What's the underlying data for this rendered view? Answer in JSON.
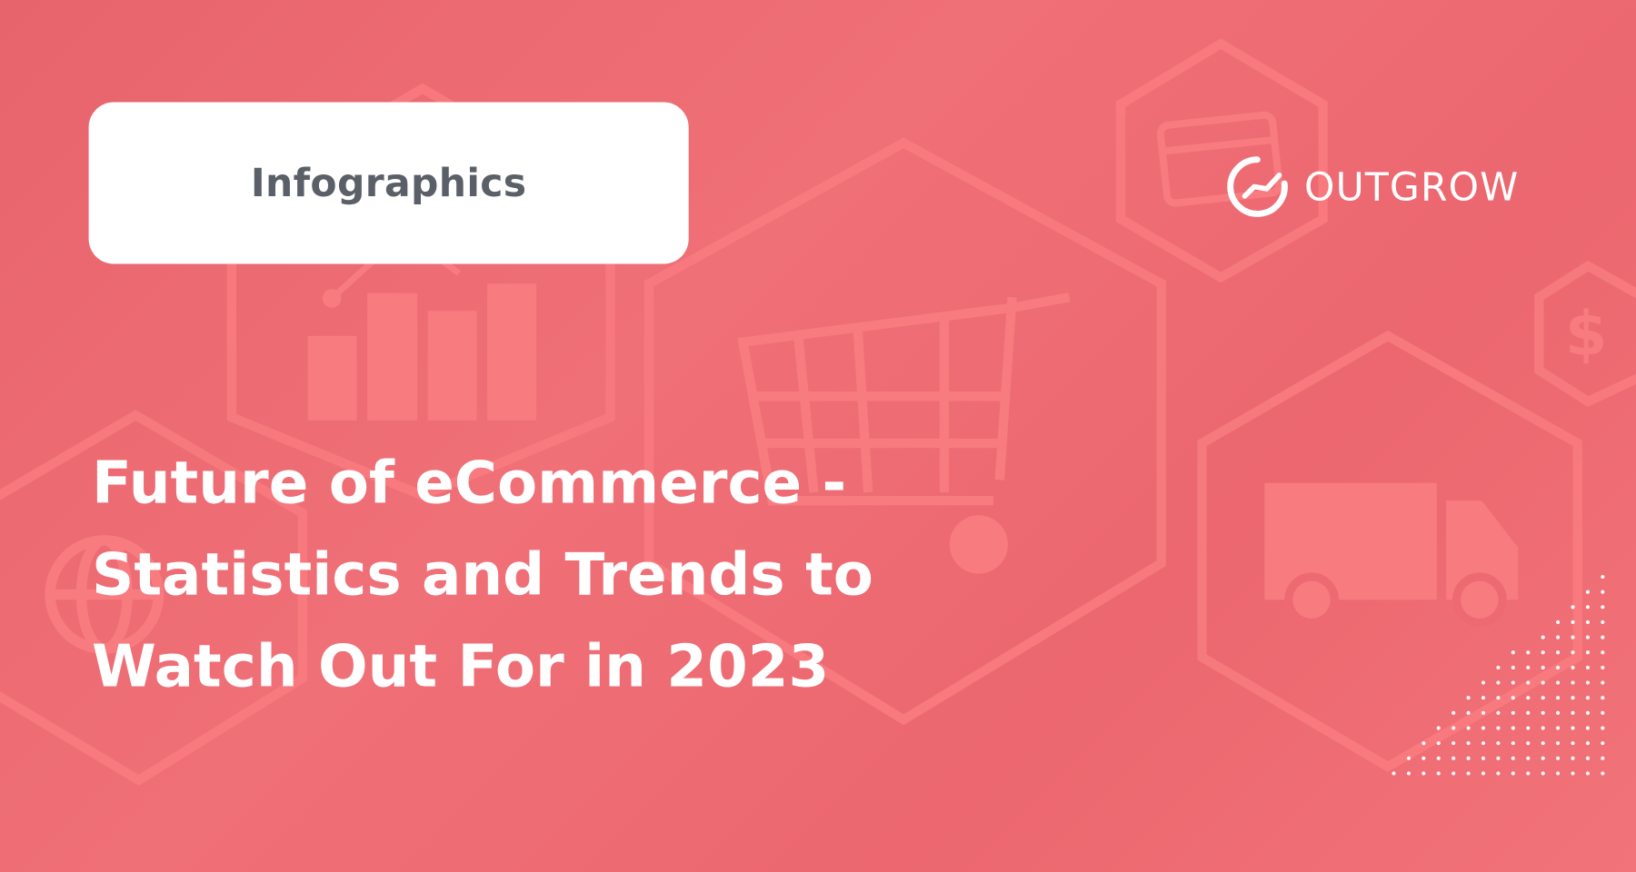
{
  "badge": {
    "label": "Infographics"
  },
  "title": {
    "lines": [
      "Future of eCommerce -",
      "Statistics and Trends to",
      "Watch Out For in 2023"
    ]
  },
  "logo": {
    "name": "OUTGROW",
    "icon": "outgrow-growth-circle-icon"
  },
  "colors": {
    "background": "#ee6a72",
    "decor": "#f87b80",
    "badge_text": "#5b6068",
    "text": "#ffffff"
  },
  "decor_icons": [
    "bar-chart-icon",
    "shopping-cart-icon",
    "credit-card-icon",
    "dollar-icon",
    "delivery-truck-icon",
    "globe-cursor-icon"
  ]
}
